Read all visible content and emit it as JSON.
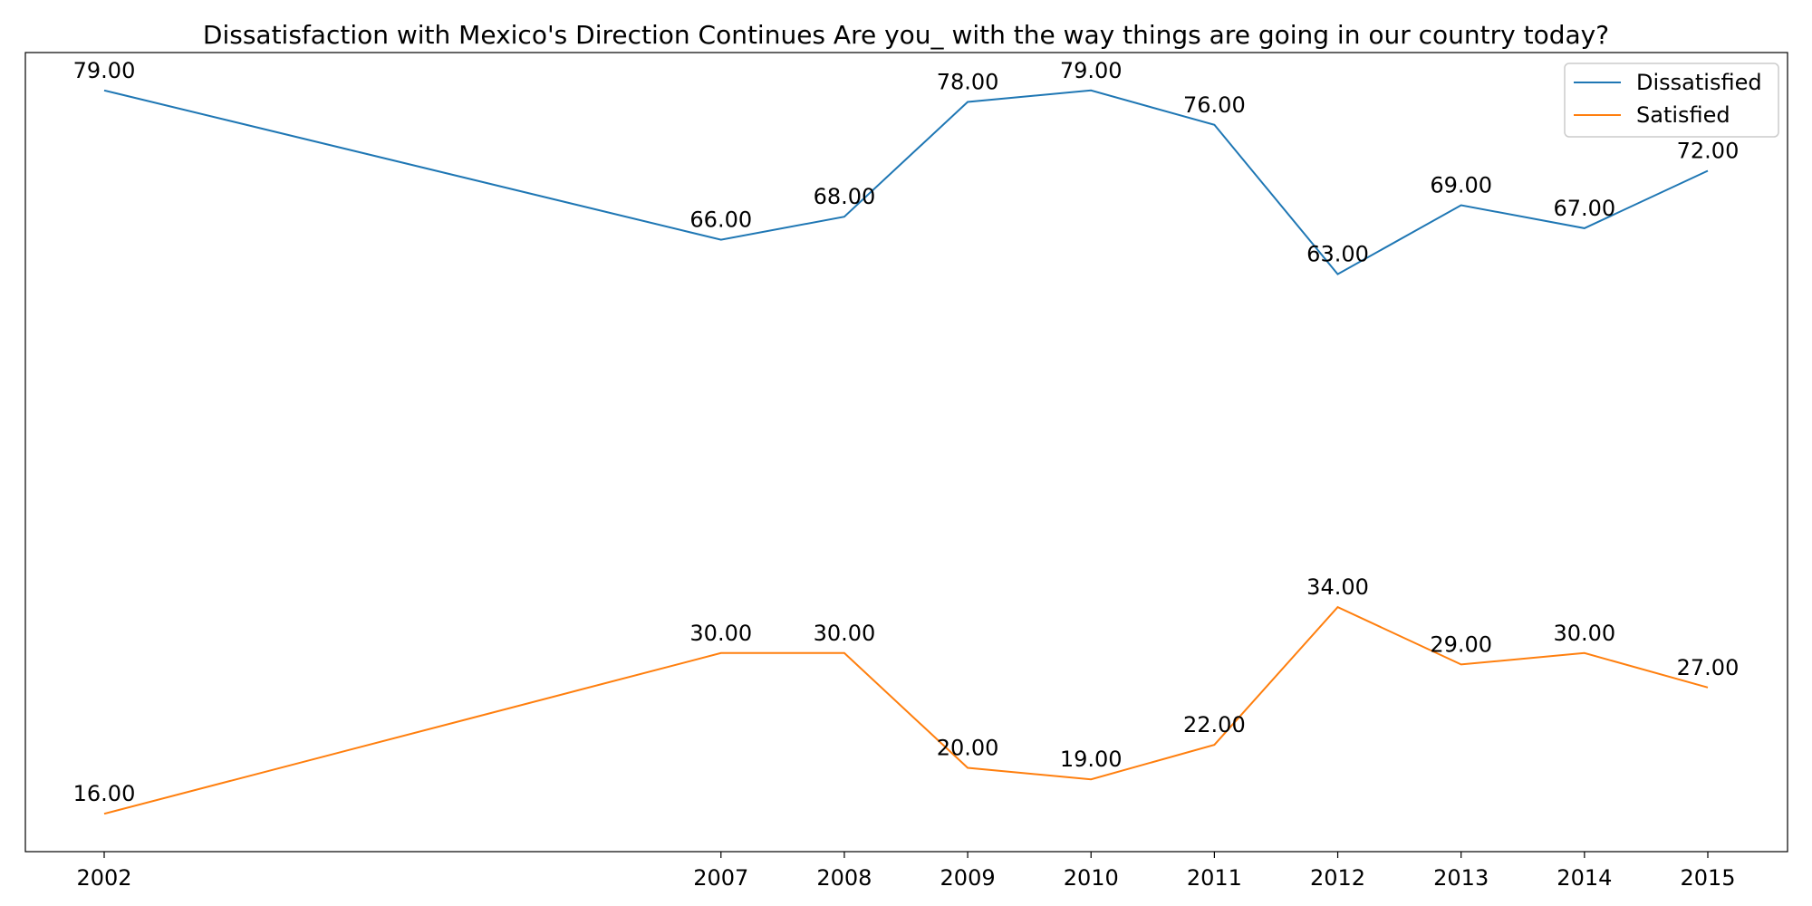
{
  "chart_data": {
    "type": "line",
    "title": "Dissatisfaction with Mexico's Direction Continues Are you_ with the way things are going in our country today?",
    "xlabel": "",
    "ylabel": "",
    "x": [
      2002,
      2007,
      2008,
      2009,
      2010,
      2011,
      2012,
      2013,
      2014,
      2015
    ],
    "x_tick_labels": [
      "2002",
      "2007",
      "2008",
      "2009",
      "2010",
      "2011",
      "2012",
      "2013",
      "2014",
      "2015"
    ],
    "ylim": [
      12.7,
      82.3
    ],
    "y_ticks_visible": false,
    "grid": false,
    "legend_position": "top-right",
    "series": [
      {
        "name": "Dissatisfied",
        "color": "#1f77b4",
        "values": [
          79,
          66,
          68,
          78,
          79,
          76,
          63,
          69,
          67,
          72
        ],
        "labels": [
          "79.00",
          "66.00",
          "68.00",
          "78.00",
          "79.00",
          "76.00",
          "63.00",
          "69.00",
          "67.00",
          "72.00"
        ]
      },
      {
        "name": "Satisfied",
        "color": "#ff7f0e",
        "values": [
          16,
          30,
          30,
          20,
          19,
          22,
          34,
          29,
          30,
          27
        ],
        "labels": [
          "16.00",
          "30.00",
          "30.00",
          "20.00",
          "19.00",
          "22.00",
          "34.00",
          "29.00",
          "30.00",
          "27.00"
        ]
      }
    ]
  }
}
